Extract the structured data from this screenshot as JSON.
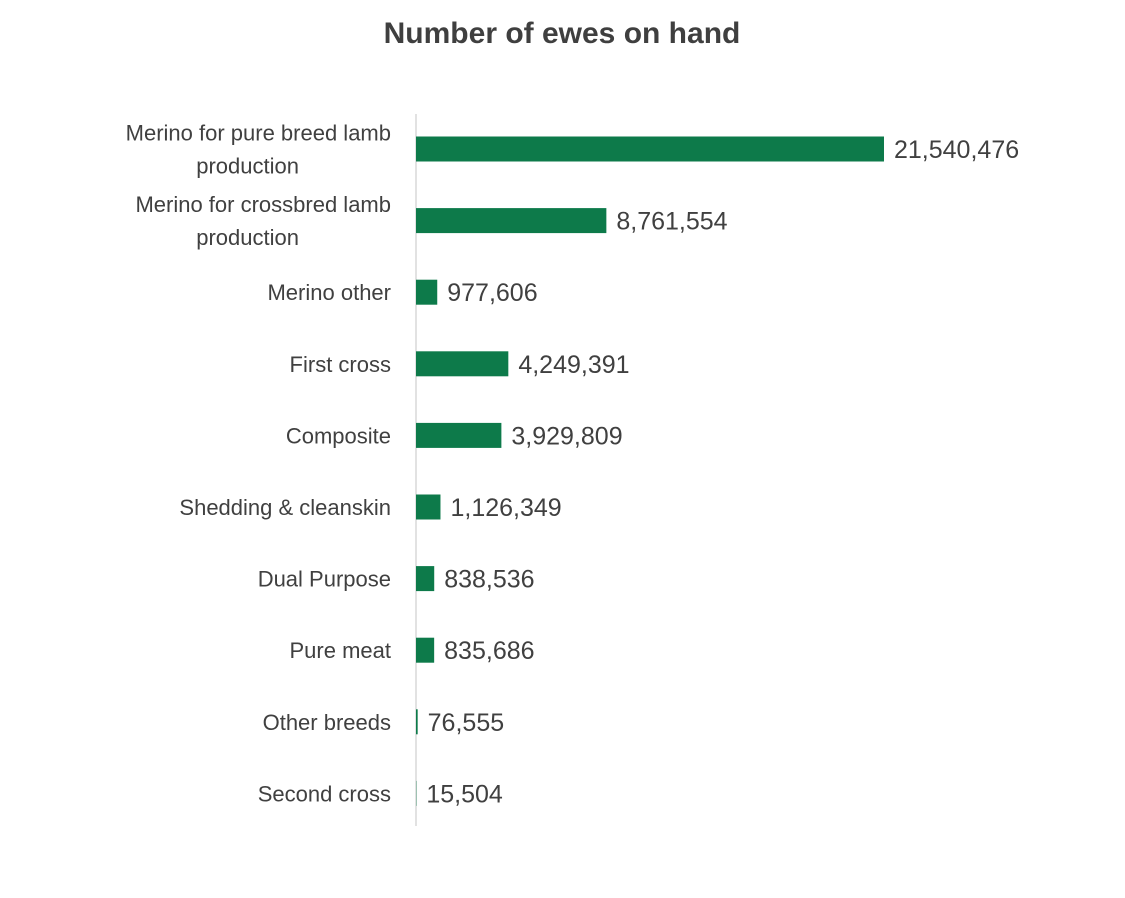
{
  "chart_data": {
    "type": "bar",
    "orientation": "horizontal",
    "title": "Number of ewes on hand",
    "xlabel": "",
    "ylabel": "",
    "categories": [
      "Merino for pure breed lamb production",
      "Merino for crossbred lamb production",
      "Merino other",
      "First cross",
      "Composite",
      "Shedding & cleanskin",
      "Dual Purpose",
      "Pure meat",
      "Other breeds",
      "Second cross"
    ],
    "category_lines": [
      [
        "Merino for pure breed lamb",
        "production"
      ],
      [
        "Merino for crossbred lamb",
        "production"
      ],
      [
        "Merino other"
      ],
      [
        "First cross"
      ],
      [
        "Composite"
      ],
      [
        "Shedding & cleanskin"
      ],
      [
        "Dual Purpose"
      ],
      [
        "Pure meat"
      ],
      [
        "Other breeds"
      ],
      [
        "Second cross"
      ]
    ],
    "values": [
      21540476,
      8761554,
      977606,
      4249391,
      3929809,
      1126349,
      838536,
      835686,
      76555,
      15504
    ],
    "value_labels": [
      "21,540,476",
      "8,761,554",
      "977,606",
      "4,249,391",
      "3,929,809",
      "1,126,349",
      "838,536",
      "835,686",
      "76,555",
      "15,504"
    ],
    "xlim": [
      0,
      21540476
    ],
    "grid": false,
    "legend": "none",
    "bar_color": "#0d7a4a"
  }
}
